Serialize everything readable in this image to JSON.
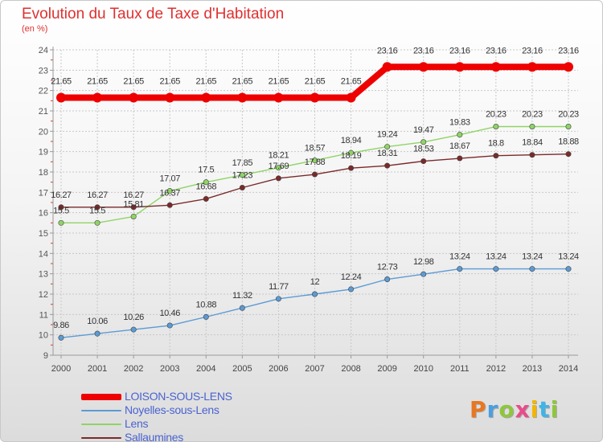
{
  "header": {
    "title": "Evolution du Taux de Taxe d'Habitation",
    "subtitle": "(en %)"
  },
  "chart_data": {
    "type": "line",
    "x": [
      2000,
      2001,
      2002,
      2003,
      2004,
      2005,
      2006,
      2007,
      2008,
      2009,
      2010,
      2011,
      2012,
      2013,
      2014
    ],
    "ylim": [
      9,
      24
    ],
    "yticks": [
      9,
      10,
      11,
      12,
      13,
      14,
      15,
      16,
      17,
      18,
      19,
      20,
      21,
      22,
      23,
      24
    ],
    "grid": true,
    "legend_position": "bottom-left",
    "series": [
      {
        "name": "LOISON-SOUS-LENS",
        "color": "#ee0000",
        "values": [
          21.65,
          21.65,
          21.65,
          21.65,
          21.65,
          21.65,
          21.65,
          21.65,
          21.65,
          23.16,
          23.16,
          23.16,
          23.16,
          23.16,
          23.16
        ],
        "labels": [
          "21.65",
          "21.65",
          "21.65",
          "21.65",
          "21.65",
          "21.65",
          "21.65",
          "21.65",
          "21.65",
          "23.16",
          "23.16",
          "23.16",
          "23.16",
          "23.16",
          "23.16"
        ]
      },
      {
        "name": "Noyelles-sous-Lens",
        "color": "#5b9bd5",
        "values": [
          9.86,
          10.06,
          10.26,
          10.46,
          10.88,
          11.32,
          11.77,
          12,
          12.24,
          12.73,
          12.98,
          13.24,
          13.24,
          13.24,
          13.24
        ],
        "labels": [
          "9.86",
          "10.06",
          "10.26",
          "10.46",
          "10.88",
          "11.32",
          "11.77",
          "12",
          "12.24",
          "12.73",
          "12.98",
          "13.24",
          "13.24",
          "13.24",
          "13.24"
        ]
      },
      {
        "name": "Lens",
        "color": "#8fd466",
        "values": [
          15.5,
          15.5,
          15.81,
          17.07,
          17.5,
          17.85,
          18.21,
          18.57,
          18.94,
          19.24,
          19.47,
          19.83,
          20.23,
          20.23,
          20.23
        ],
        "labels": [
          "15.5",
          "15.5",
          "15.81",
          "17.07",
          "17.5",
          "17.85",
          "18.21",
          "18.57",
          "18.94",
          "19.24",
          "19.47",
          "19.83",
          "20.23",
          "20.23",
          "20.23"
        ]
      },
      {
        "name": "Sallaumines",
        "color": "#7a2a2a",
        "values": [
          16.27,
          16.27,
          16.27,
          16.37,
          16.68,
          17.23,
          17.69,
          17.88,
          18.19,
          18.31,
          18.53,
          18.67,
          18.8,
          18.84,
          18.88
        ],
        "labels": [
          "16.27",
          "16.27",
          "16.27",
          "16.37",
          "16.68",
          "17.23",
          "17.69",
          "17.88",
          "18.19",
          "18.31",
          "18.53",
          "18.67",
          "18.8",
          "18.84",
          "18.88"
        ]
      }
    ]
  },
  "logo": {
    "text": "Proxiti"
  },
  "colors": {
    "title": "#e03030",
    "legend_text": "#4a63d0",
    "grid": "#c8c8c8"
  }
}
